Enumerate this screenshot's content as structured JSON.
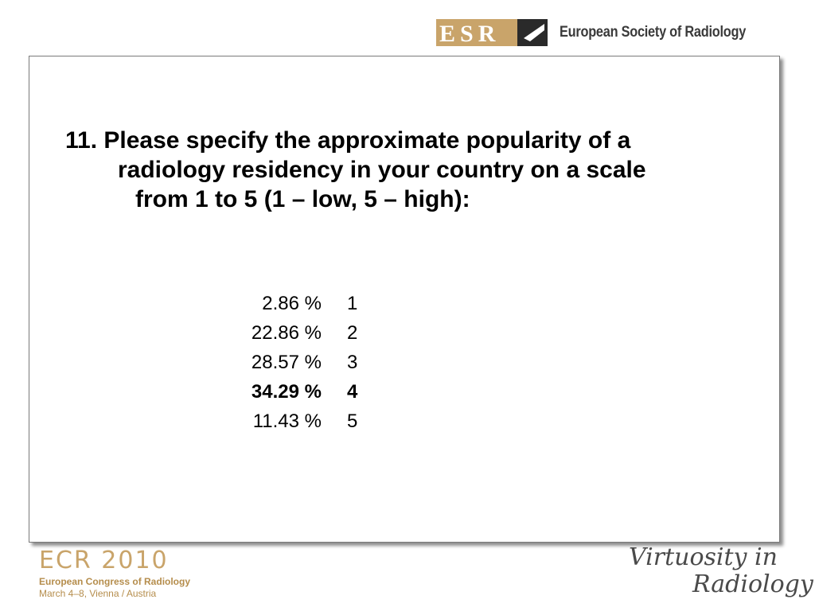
{
  "header": {
    "logo_text": "ESR",
    "organization": "European Society of Radiology"
  },
  "question": {
    "line1": "11. Please specify the approximate popularity of a",
    "line2": "radiology residency in your country on a scale",
    "line3": "from 1 to 5 (1 – low, 5 – high):"
  },
  "results": [
    {
      "percent": "2.86 %",
      "score": "1",
      "bold": false
    },
    {
      "percent": "22.86 %",
      "score": "2",
      "bold": false
    },
    {
      "percent": "28.57 %",
      "score": "3",
      "bold": false
    },
    {
      "percent": "34.29 %",
      "score": "4",
      "bold": true
    },
    {
      "percent": "11.43 %",
      "score": "5",
      "bold": false
    }
  ],
  "footer": {
    "congress_title": "ECR 2010",
    "congress_name": "European Congress of Radiology",
    "congress_date": "March 4–8, Vienna / Austria",
    "tagline_line1": "Virtuosity in",
    "tagline_line2": "Radiology"
  },
  "colors": {
    "brand_gold": "#c9a46a",
    "text_dark": "#3a3a3a"
  }
}
